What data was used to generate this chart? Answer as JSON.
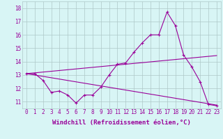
{
  "x": [
    0,
    1,
    2,
    3,
    4,
    5,
    6,
    7,
    8,
    9,
    10,
    11,
    12,
    13,
    14,
    15,
    16,
    17,
    18,
    19,
    20,
    21,
    22,
    23
  ],
  "line1": [
    13.1,
    13.1,
    12.6,
    11.7,
    11.8,
    11.5,
    10.9,
    11.5,
    11.5,
    12.1,
    13.0,
    13.8,
    13.9,
    14.7,
    15.4,
    16.0,
    16.0,
    17.7,
    16.7,
    14.5,
    13.6,
    12.5,
    10.8,
    10.7
  ],
  "trend1_x": [
    0,
    23
  ],
  "trend1_y": [
    13.1,
    14.45
  ],
  "trend2_x": [
    0,
    23
  ],
  "trend2_y": [
    13.1,
    10.75
  ],
  "line_color": "#990099",
  "bg_color": "#d8f5f5",
  "grid_color": "#aec8c8",
  "xlabel": "Windchill (Refroidissement éolien,°C)",
  "ylabel_ticks": [
    11,
    12,
    13,
    14,
    15,
    16,
    17,
    18
  ],
  "xlim": [
    -0.5,
    23.5
  ],
  "ylim": [
    10.5,
    18.5
  ],
  "xticks": [
    0,
    1,
    2,
    3,
    4,
    5,
    6,
    7,
    8,
    9,
    10,
    11,
    12,
    13,
    14,
    15,
    16,
    17,
    18,
    19,
    20,
    21,
    22,
    23
  ],
  "tick_fontsize": 5.5,
  "label_fontsize": 6.5
}
